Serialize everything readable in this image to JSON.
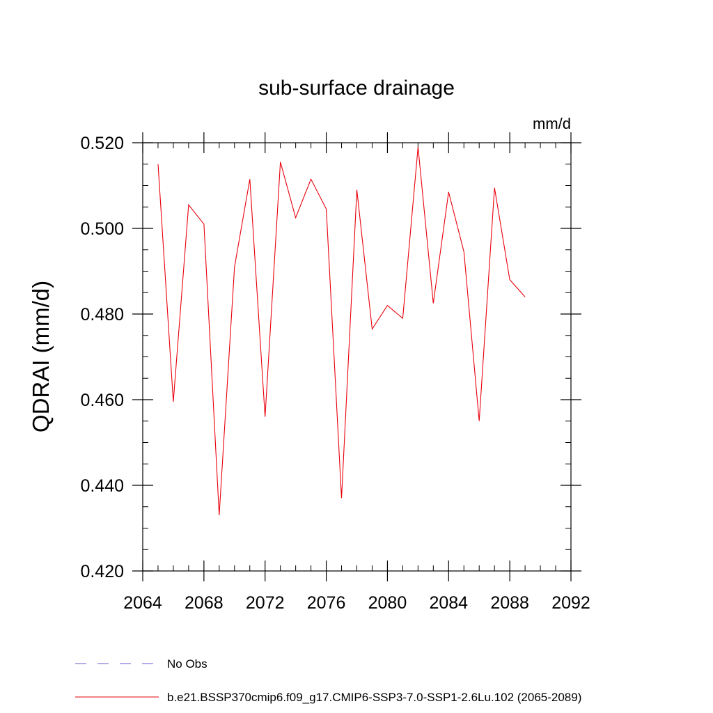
{
  "chart_data": {
    "type": "line",
    "title": "sub-surface drainage",
    "units_label": "mm/d",
    "ylabel": "QDRAI  (mm/d)",
    "xlabel": "",
    "xlim": [
      2064,
      2092
    ],
    "ylim": [
      0.42,
      0.52
    ],
    "xticks": [
      2064,
      2068,
      2072,
      2076,
      2080,
      2084,
      2088,
      2092
    ],
    "xtick_labels": [
      "2064",
      "2068",
      "2072",
      "2076",
      "2080",
      "2084",
      "2088",
      "2092"
    ],
    "yticks": [
      0.42,
      0.44,
      0.46,
      0.48,
      0.5,
      0.52
    ],
    "ytick_labels": [
      "0.420",
      "0.440",
      "0.460",
      "0.480",
      "0.500",
      "0.520"
    ],
    "x_minor_step": 1,
    "y_minor_step": 0.005,
    "grid": false,
    "legend_position": "bottom",
    "legend": [
      {
        "label": "No Obs",
        "color": "#6a5acd",
        "dash": true
      },
      {
        "label": "b.e21.BSSP370cmip6.f09_g17.CMIP6-SSP3-7.0-SSP1-2.6Lu.102 (2065-2089)",
        "color": "#e8000b",
        "dash": false
      }
    ],
    "series": [
      {
        "color": "#e8000b",
        "x": [
          2065,
          2066,
          2067,
          2068,
          2069,
          2070,
          2071,
          2072,
          2073,
          2074,
          2075,
          2076,
          2077,
          2078,
          2079,
          2080,
          2081,
          2082,
          2083,
          2084,
          2085,
          2086,
          2087,
          2088,
          2089
        ],
        "values": [
          0.515,
          0.4595,
          0.5055,
          0.501,
          0.433,
          0.491,
          0.5115,
          0.456,
          0.5155,
          0.5025,
          0.5115,
          0.5045,
          0.437,
          0.509,
          0.4765,
          0.482,
          0.479,
          0.519,
          0.4825,
          0.5085,
          0.4945,
          0.455,
          0.5095,
          0.488,
          0.484
        ]
      }
    ]
  }
}
